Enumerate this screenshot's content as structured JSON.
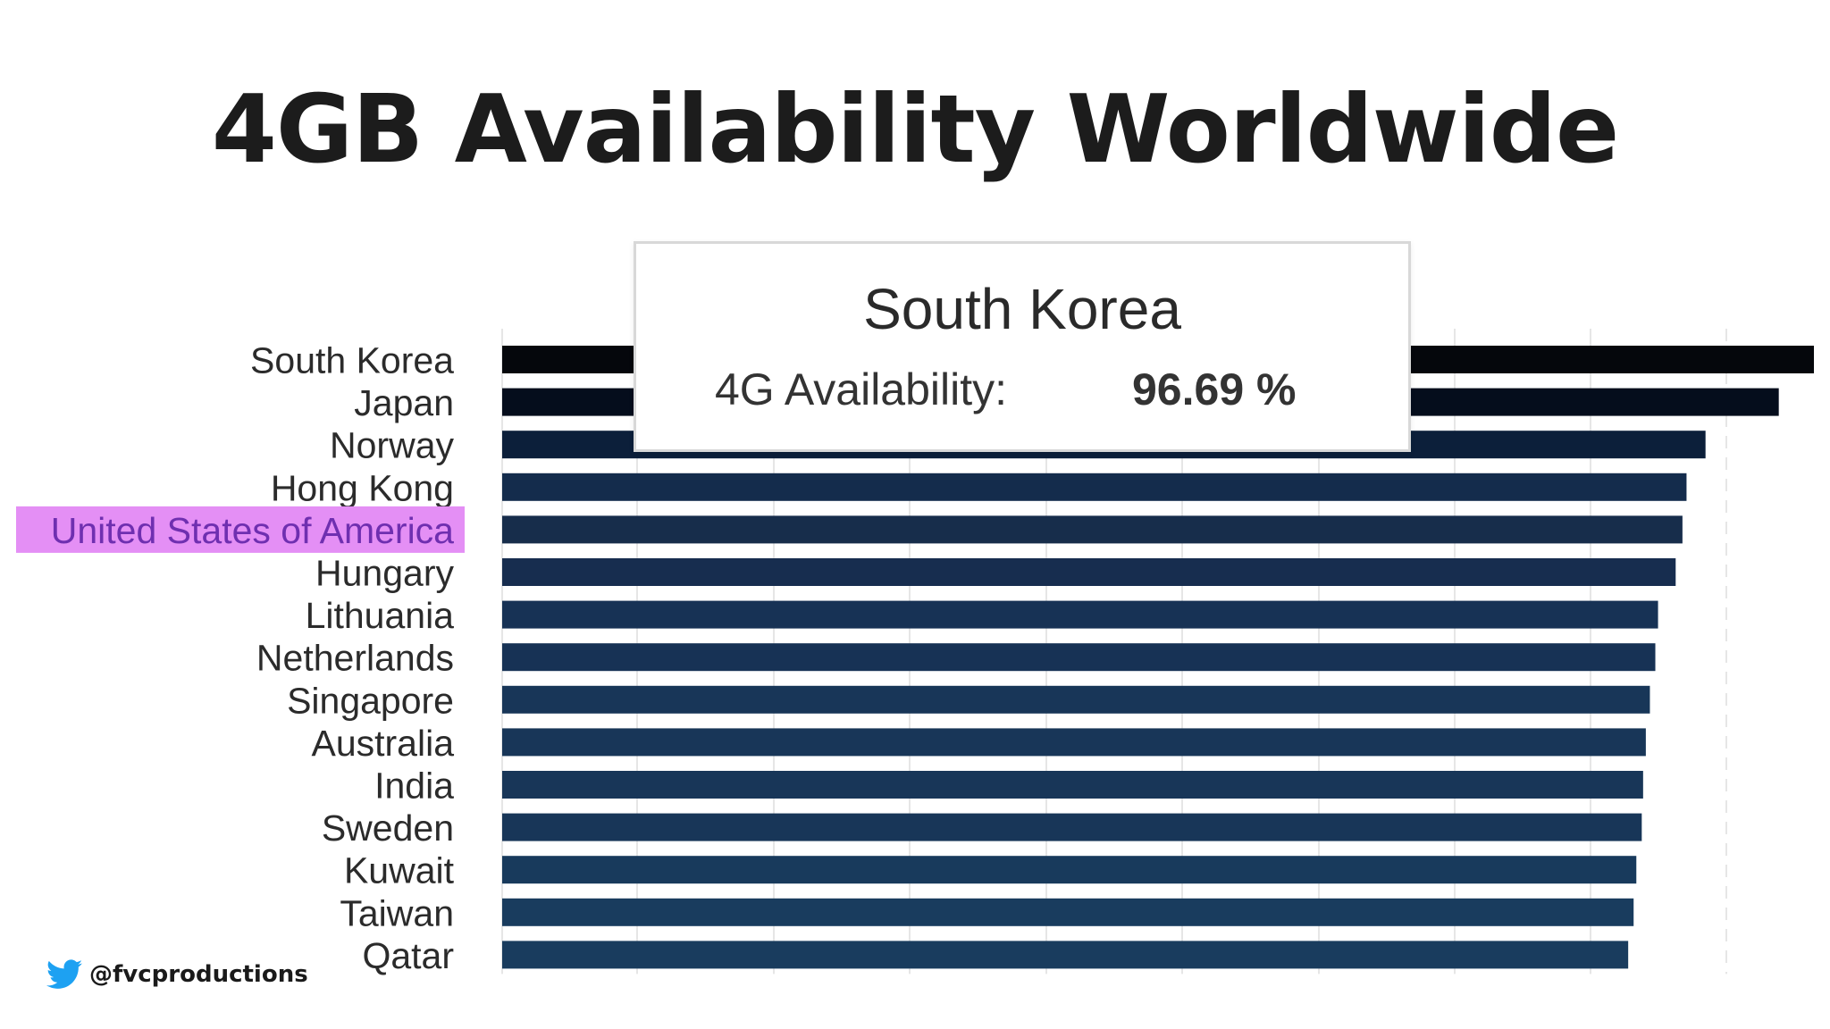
{
  "slide": {
    "title": "4GB Availability Worldwide",
    "credit_handle": "@fvcproductions",
    "credit_icon": "twitter-bird-icon"
  },
  "tooltip": {
    "country": "South Korea",
    "label": "4G Availability:",
    "value": "96.69 %"
  },
  "colors": {
    "highlight": "#e48ff5",
    "highlight_text": "#6f2fb0",
    "twitter": "#1da1f2"
  },
  "chart_data": {
    "type": "bar",
    "orientation": "horizontal",
    "categories": [
      "South Korea",
      "Japan",
      "Norway",
      "Hong Kong",
      "United States of America",
      "Hungary",
      "Lithuania",
      "Netherlands",
      "Singapore",
      "Australia",
      "India",
      "Sweden",
      "Kuwait",
      "Taiwan",
      "Qatar"
    ],
    "values": [
      96.69,
      94.1,
      88.7,
      87.3,
      87.0,
      86.5,
      85.2,
      85.0,
      84.6,
      84.3,
      84.1,
      84.0,
      83.6,
      83.4,
      83.0
    ],
    "highlighted_category": "United States of America",
    "xlim": [
      0,
      96.69
    ],
    "grid": true,
    "bar_colors": [
      "#05070c",
      "#050d1c",
      "#0c1f3a",
      "#142c4c",
      "#172d4b",
      "#172d4f",
      "#173255",
      "#173255",
      "#183658",
      "#183658",
      "#183658",
      "#183658",
      "#183a5c",
      "#193c5e",
      "#193c5e"
    ]
  }
}
